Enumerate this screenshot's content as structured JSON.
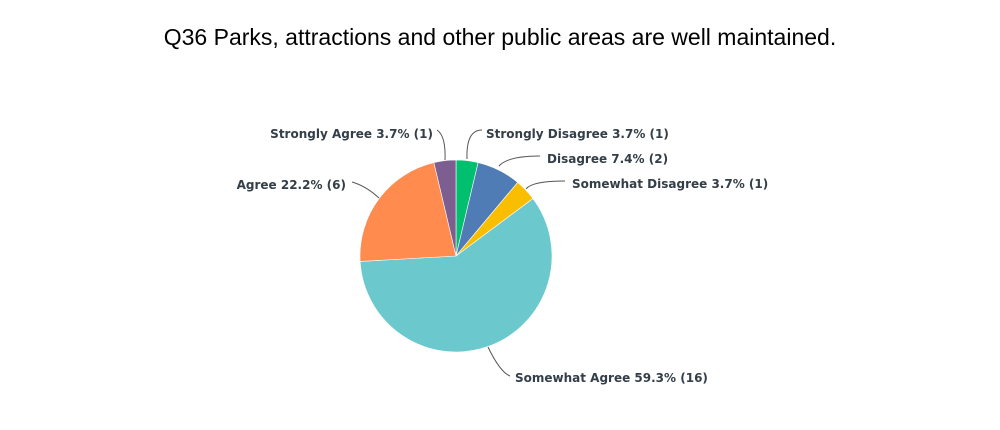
{
  "chart_data": {
    "type": "pie",
    "title": "Q36 Parks, attractions and other public areas are well maintained.",
    "slices": [
      {
        "label": "Strongly Disagree",
        "percent": 3.7,
        "count": 1,
        "display": "Strongly Disagree 3.7% (1)",
        "color": "#00bf6f"
      },
      {
        "label": "Disagree",
        "percent": 7.4,
        "count": 2,
        "display": "Disagree 7.4% (2)",
        "color": "#507cb6"
      },
      {
        "label": "Somewhat Disagree",
        "percent": 3.7,
        "count": 1,
        "display": "Somewhat Disagree 3.7% (1)",
        "color": "#f9be00"
      },
      {
        "label": "Somewhat Agree",
        "percent": 59.3,
        "count": 16,
        "display": "Somewhat Agree 59.3% (16)",
        "color": "#6bc8cd"
      },
      {
        "label": "Agree",
        "percent": 22.2,
        "count": 6,
        "display": "Agree 22.2% (6)",
        "color": "#ff8b4f"
      },
      {
        "label": "Strongly Agree",
        "percent": 3.7,
        "count": 1,
        "display": "Strongly Agree 3.7% (1)",
        "color": "#7d5e90"
      }
    ]
  }
}
